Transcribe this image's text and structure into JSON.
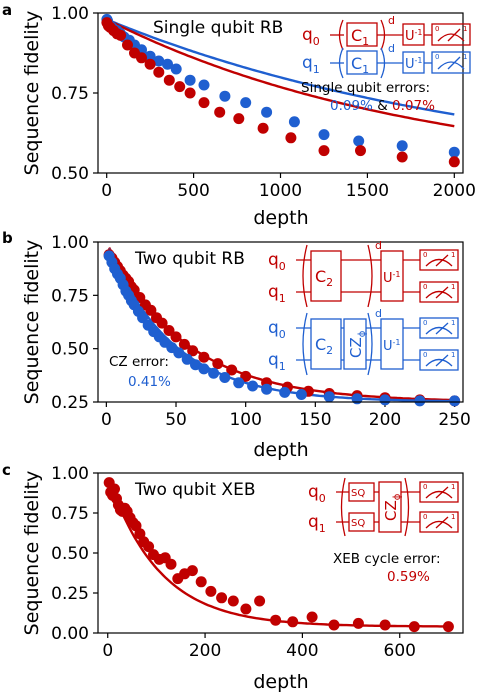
{
  "colors": {
    "red": "#c00000",
    "blue": "#1f5fd0",
    "axis": "#000000"
  },
  "chart_data": [
    {
      "type": "scatter",
      "panel_label": "a",
      "title": "Single qubit RB",
      "xlabel": "depth",
      "ylabel": "Sequence fidelity",
      "xlim": [
        -50,
        2050
      ],
      "ylim": [
        0.5,
        1.0
      ],
      "xticks": [
        0,
        500,
        1000,
        1500,
        2000
      ],
      "xtick_labels": [
        "0",
        "500",
        "1000",
        "1500",
        "2000"
      ],
      "yticks": [
        0.5,
        0.75,
        1.0
      ],
      "ytick_labels": [
        "0.50",
        "0.75",
        "1.00"
      ],
      "error_label": "Single qubit errors:",
      "error_value_blue": "0.09%",
      "error_joiner": "&",
      "error_value_red": "0.07%",
      "circuits": [
        {
          "color": "red",
          "qubit_main": "q",
          "qubit_sub": "0",
          "gate_main": "C",
          "gate_sub": "1",
          "repeat": "d",
          "inverse_main": "U",
          "inverse_sup": "-1",
          "meas_0": "0",
          "meas_1": "1"
        },
        {
          "color": "blue",
          "qubit_main": "q",
          "qubit_sub": "1",
          "gate_main": "C",
          "gate_sub": "1",
          "repeat": "d",
          "inverse_main": "U",
          "inverse_sup": "-1",
          "meas_0": "0",
          "meas_1": "1"
        }
      ],
      "series": [
        {
          "color": "blue",
          "fit": {
            "A": 0.5,
            "B": 0.48,
            "p": 0.99955
          },
          "x": [
            1,
            5,
            10,
            20,
            30,
            40,
            60,
            80,
            100,
            130,
            160,
            200,
            250,
            300,
            350,
            400,
            480,
            560,
            680,
            800,
            920,
            1080,
            1250,
            1450,
            1700,
            2000
          ],
          "y": [
            0.98,
            0.975,
            0.965,
            0.96,
            0.955,
            0.95,
            0.945,
            0.935,
            0.925,
            0.915,
            0.9,
            0.885,
            0.865,
            0.85,
            0.84,
            0.825,
            0.79,
            0.775,
            0.74,
            0.72,
            0.69,
            0.66,
            0.62,
            0.6,
            0.585,
            0.565
          ]
        },
        {
          "color": "red",
          "fit": {
            "A": 0.5,
            "B": 0.48,
            "p": 0.99945
          },
          "x": [
            1,
            10,
            20,
            40,
            60,
            80,
            120,
            160,
            200,
            250,
            300,
            360,
            420,
            480,
            560,
            650,
            760,
            900,
            1060,
            1250,
            1460,
            1700,
            2000
          ],
          "y": [
            0.97,
            0.96,
            0.955,
            0.945,
            0.935,
            0.93,
            0.9,
            0.875,
            0.86,
            0.84,
            0.815,
            0.79,
            0.77,
            0.75,
            0.72,
            0.69,
            0.67,
            0.64,
            0.61,
            0.57,
            0.57,
            0.55,
            0.535
          ]
        }
      ]
    },
    {
      "type": "scatter",
      "panel_label": "b",
      "title": "Two qubit RB",
      "xlabel": "depth",
      "ylabel": "Sequence fidelity",
      "xlim": [
        -6,
        256
      ],
      "ylim": [
        0.25,
        1.0
      ],
      "xticks": [
        0,
        50,
        100,
        150,
        200,
        250
      ],
      "xtick_labels": [
        "0",
        "50",
        "100",
        "150",
        "200",
        "250"
      ],
      "yticks": [
        0.25,
        0.5,
        0.75,
        1.0
      ],
      "ytick_labels": [
        "0.25",
        "0.50",
        "0.75",
        "1.00"
      ],
      "error_label": "CZ error:",
      "error_value_blue": "0.41%",
      "circuits": [
        {
          "color": "red",
          "qubit_main": "q",
          "qubit_top_sub": "0",
          "qubit_bottom_sub": "1",
          "gate_main": "C",
          "gate_sub": "2",
          "repeat": "d",
          "inverse_main": "U",
          "inverse_sup": "-1",
          "meas_0": "0",
          "meas_1": "1"
        },
        {
          "color": "blue",
          "qubit_main": "q",
          "qubit_top_sub": "0",
          "qubit_bottom_sub": "1",
          "gate_main": "C",
          "gate_sub": "2",
          "cz_main": "CZ",
          "cz_sub": "ϕ",
          "repeat": "d",
          "inverse_main": "U",
          "inverse_sup": "-1",
          "meas_0": "0",
          "meas_1": "1"
        }
      ],
      "series": [
        {
          "color": "red",
          "fit": {
            "A": 0.75,
            "B": 0.25,
            "p": 0.9825
          },
          "x": [
            2,
            4,
            6,
            8,
            10,
            12,
            14,
            16,
            18,
            20,
            24,
            28,
            32,
            36,
            40,
            45,
            50,
            56,
            62,
            70,
            80,
            90,
            100,
            115,
            130,
            145,
            160,
            180,
            200,
            225,
            250
          ],
          "y": [
            0.94,
            0.925,
            0.905,
            0.885,
            0.865,
            0.845,
            0.83,
            0.815,
            0.79,
            0.775,
            0.74,
            0.705,
            0.68,
            0.645,
            0.62,
            0.585,
            0.555,
            0.52,
            0.49,
            0.46,
            0.43,
            0.4,
            0.37,
            0.34,
            0.32,
            0.3,
            0.29,
            0.28,
            0.27,
            0.26,
            0.255
          ]
        },
        {
          "color": "blue",
          "fit": {
            "A": 0.75,
            "B": 0.25,
            "p": 0.979
          },
          "x": [
            2,
            4,
            6,
            8,
            10,
            12,
            14,
            16,
            18,
            20,
            23,
            26,
            30,
            34,
            38,
            42,
            47,
            52,
            58,
            64,
            70,
            77,
            85,
            95,
            105,
            115,
            128,
            140,
            160,
            180,
            200,
            225,
            250
          ],
          "y": [
            0.935,
            0.905,
            0.875,
            0.85,
            0.83,
            0.8,
            0.77,
            0.75,
            0.725,
            0.705,
            0.675,
            0.645,
            0.61,
            0.58,
            0.555,
            0.53,
            0.505,
            0.48,
            0.45,
            0.425,
            0.405,
            0.385,
            0.365,
            0.34,
            0.325,
            0.31,
            0.295,
            0.285,
            0.275,
            0.265,
            0.26,
            0.255,
            0.255
          ]
        }
      ]
    },
    {
      "type": "scatter",
      "panel_label": "c",
      "title": "Two qubit XEB",
      "xlabel": "depth",
      "ylabel": "Sequence fidelity",
      "xlim": [
        -20,
        730
      ],
      "ylim": [
        0.0,
        1.0
      ],
      "xticks": [
        0,
        200,
        400,
        600
      ],
      "xtick_labels": [
        "0",
        "200",
        "400",
        "600"
      ],
      "yticks": [
        0.0,
        0.25,
        0.5,
        0.75,
        1.0
      ],
      "ytick_labels": [
        "0.00",
        "0.25",
        "0.50",
        "0.75",
        "1.00"
      ],
      "error_label": "XEB cycle error:",
      "error_value_red": "0.59%",
      "circuits": [
        {
          "color": "red",
          "qubit_main": "q",
          "qubit_top_sub": "0",
          "qubit_bottom_sub": "1",
          "sq_label": "SQ",
          "cz_main": "CZ",
          "cz_sub": "ϕ",
          "meas_0": "0",
          "meas_1": "1"
        }
      ],
      "series": [
        {
          "color": "red",
          "fit": {
            "A": 0.94,
            "B": 0.04,
            "p": 0.9906
          },
          "x": [
            3,
            6,
            10,
            14,
            18,
            22,
            26,
            30,
            35,
            40,
            46,
            52,
            58,
            66,
            74,
            84,
            94,
            106,
            118,
            130,
            144,
            158,
            174,
            192,
            212,
            234,
            258,
            284,
            312,
            345,
            380,
            420,
            465,
            515,
            570,
            630,
            700
          ],
          "y": [
            0.94,
            0.88,
            0.86,
            0.9,
            0.84,
            0.8,
            0.77,
            0.76,
            0.78,
            0.76,
            0.72,
            0.69,
            0.67,
            0.62,
            0.57,
            0.54,
            0.49,
            0.46,
            0.47,
            0.43,
            0.34,
            0.37,
            0.39,
            0.32,
            0.26,
            0.22,
            0.2,
            0.15,
            0.2,
            0.08,
            0.07,
            0.1,
            0.05,
            0.06,
            0.05,
            0.04,
            0.04
          ]
        }
      ]
    }
  ]
}
